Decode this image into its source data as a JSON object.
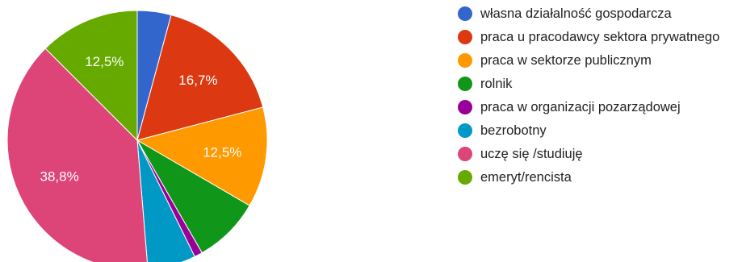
{
  "chart_data": {
    "type": "pie",
    "title": "",
    "start_angle_deg": 90,
    "direction": "clockwise",
    "legend_position": "right",
    "slices": [
      {
        "name": "własna działalność gospodarcza",
        "value": 4.2,
        "color": "#3366cc",
        "label": ""
      },
      {
        "name": "praca u pracodawcy sektora prywatnego",
        "value": 16.7,
        "color": "#dc3912",
        "label": "16,7%"
      },
      {
        "name": "praca w sektorze publicznym",
        "value": 12.5,
        "color": "#ff9900",
        "label": "12,5%"
      },
      {
        "name": "rolnik",
        "value": 8.3,
        "color": "#109618",
        "label": ""
      },
      {
        "name": "praca w organizacji pozarządowej",
        "value": 1.0,
        "color": "#990099",
        "label": ""
      },
      {
        "name": "bezrobotny",
        "value": 6.0,
        "color": "#0099c6",
        "label": ""
      },
      {
        "name": "uczę się /studiuję",
        "value": 38.8,
        "color": "#dd4477",
        "label": "38,8%"
      },
      {
        "name": "emeryt/rencista",
        "value": 12.5,
        "color": "#66aa00",
        "label": "12,5%"
      }
    ]
  }
}
